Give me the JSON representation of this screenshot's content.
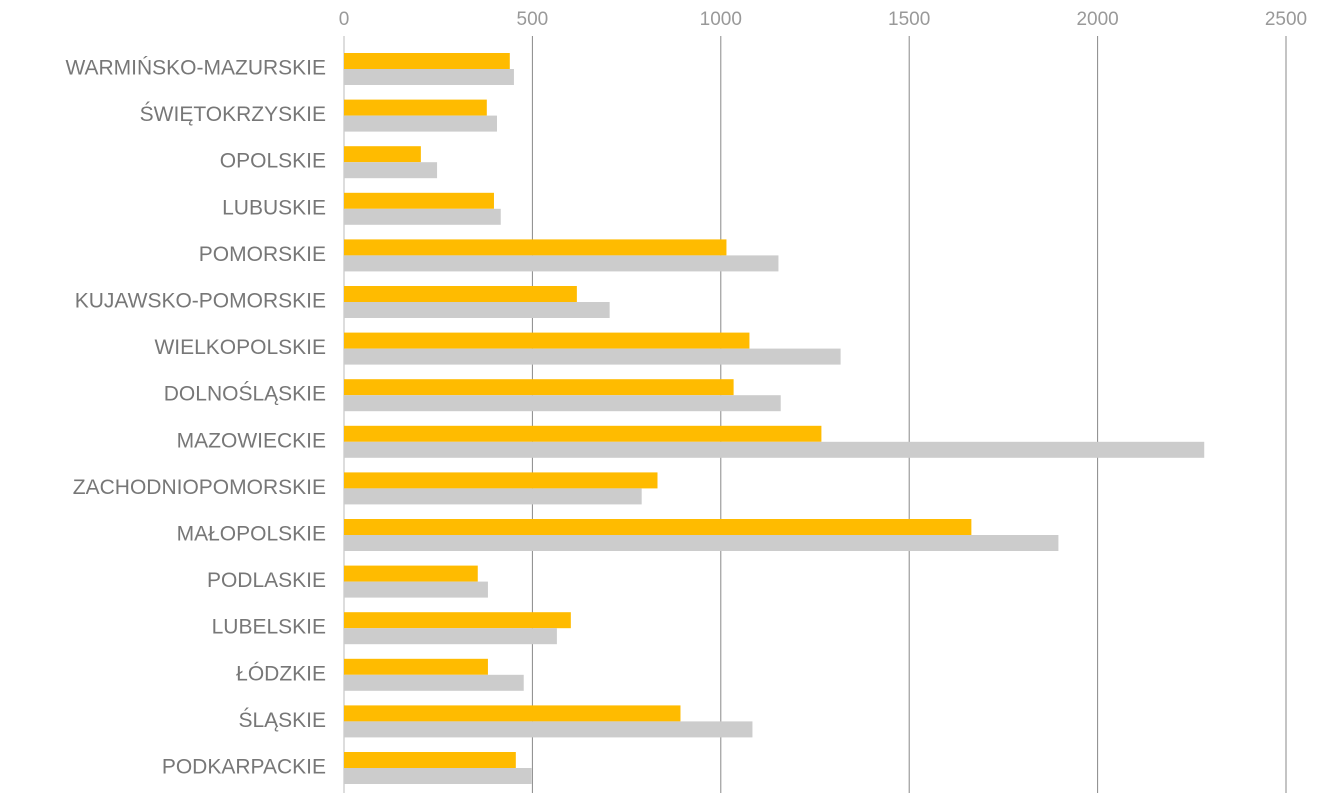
{
  "chart_data": {
    "type": "hbar",
    "categories": [
      "WARMIŃSKO-MAZURSKIE",
      "ŚWIĘTOKRZYSKIE",
      "OPOLSKIE",
      "LUBUSKIE",
      "POMORSKIE",
      "KUJAWSKO-POMORSKIE",
      "WIELKOPOLSKIE",
      "DOLNOŚLĄSKIE",
      "MAZOWIECKIE",
      "ZACHODNIOPOMORSKIE",
      "MAŁOPOLSKIE",
      "PODLASKIE",
      "LUBELSKIE",
      "ŁÓDZKIE",
      "ŚLĄSKIE",
      "PODKARPACKIE"
    ],
    "series": [
      {
        "color": "#ffbb00",
        "values": [
          440,
          379,
          204,
          398,
          1015,
          618,
          1076,
          1034,
          1267,
          832,
          1665,
          355,
          602,
          382,
          893,
          456
        ]
      },
      {
        "color": "#cccccc",
        "values": [
          451,
          406,
          247,
          416,
          1153,
          705,
          1318,
          1159,
          2283,
          790,
          1896,
          382,
          565,
          477,
          1084,
          498
        ]
      }
    ],
    "xlim": [
      0,
      2500
    ],
    "xticks": [
      0,
      500,
      1000,
      1500,
      2000,
      2500
    ],
    "grid": true
  }
}
